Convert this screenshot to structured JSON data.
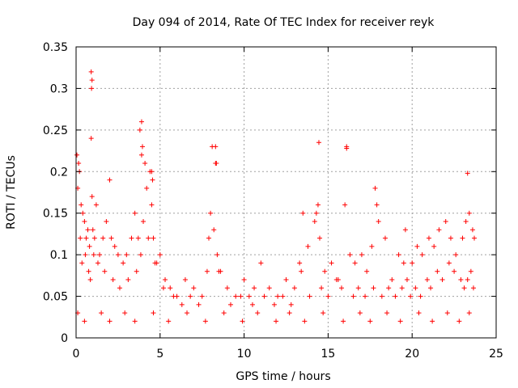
{
  "chart_data": {
    "type": "scatter",
    "title": "Day 094 of 2014, Rate Of TEC Index for receiver reyk",
    "xlabel": "GPS time / hours",
    "ylabel": "ROTI / TECUs",
    "xlim": [
      0,
      25
    ],
    "ylim": [
      0,
      0.35
    ],
    "xticks": [
      0,
      5,
      10,
      15,
      20,
      25
    ],
    "xtick_labels": [
      "0",
      "5",
      "10",
      "15",
      "20",
      "25"
    ],
    "yticks": [
      0,
      0.05,
      0.1,
      0.15,
      0.2,
      0.25,
      0.3,
      0.35
    ],
    "ytick_labels": [
      "0",
      "0.05",
      "0.1",
      "0.15",
      "0.2",
      "0.25",
      "0.3",
      "0.35"
    ],
    "grid": true,
    "marker": "plus",
    "color": "#ff0000",
    "series": [
      {
        "name": "ROTI",
        "x": [
          0.05,
          0.1,
          0.15,
          0.2,
          0.3,
          0.4,
          0.5,
          0.6,
          0.7,
          0.8,
          0.9,
          0.95,
          1.0,
          1.1,
          1.2,
          1.4,
          1.6,
          1.8,
          2.0,
          2.1,
          2.3,
          2.5,
          2.8,
          3.0,
          3.3,
          3.5,
          3.7,
          3.8,
          3.9,
          4.0,
          4.2,
          4.4,
          4.5,
          4.6,
          4.8,
          5.0,
          5.3,
          5.6,
          6.0,
          6.5,
          7.0,
          7.5,
          7.8,
          8.0,
          8.2,
          8.4,
          8.6,
          9.0,
          9.5,
          10.0,
          10.3,
          10.6,
          11.0,
          11.5,
          12.0,
          12.5,
          13.0,
          13.3,
          13.5,
          13.8,
          14.2,
          14.4,
          14.5,
          14.8,
          15.2,
          15.5,
          15.8,
          16.0,
          16.3,
          16.6,
          17.0,
          17.3,
          17.6,
          17.8,
          18.0,
          18.4,
          18.8,
          19.2,
          19.5,
          19.7,
          20.0,
          20.3,
          20.6,
          21.0,
          21.3,
          21.6,
          22.0,
          22.3,
          22.6,
          23.0,
          23.2,
          23.4,
          23.6,
          23.7,
          0.25,
          0.35,
          0.55,
          0.75,
          0.85,
          0.95,
          1.05,
          1.3,
          1.7,
          2.2,
          2.6,
          3.1,
          3.6,
          3.85,
          4.1,
          4.3,
          4.55,
          4.7,
          5.2,
          5.8,
          6.3,
          6.8,
          7.3,
          7.9,
          8.1,
          8.3,
          8.5,
          9.2,
          9.8,
          10.5,
          11.2,
          11.8,
          12.3,
          12.8,
          13.4,
          13.9,
          14.3,
          14.6,
          15.0,
          15.6,
          16.1,
          16.5,
          16.8,
          17.2,
          17.7,
          17.9,
          18.2,
          18.6,
          19.0,
          19.4,
          19.6,
          19.9,
          20.2,
          20.5,
          20.9,
          21.1,
          21.5,
          21.8,
          22.2,
          22.5,
          22.9,
          23.1,
          23.3,
          23.5,
          23.65,
          0.9,
          0.92,
          3.9,
          3.95,
          4.5,
          8.3,
          8.35,
          14.45,
          16.1,
          23.3,
          0.1,
          0.5,
          1.5,
          2.0,
          2.9,
          3.5,
          4.6,
          5.5,
          6.6,
          7.7,
          8.8,
          9.9,
          10.8,
          11.9,
          12.7,
          13.6,
          14.7,
          15.9,
          16.9,
          17.5,
          18.5,
          19.3,
          20.4,
          21.2,
          22.1,
          22.8,
          23.4
        ],
        "y": [
          0.22,
          0.18,
          0.21,
          0.2,
          0.16,
          0.15,
          0.14,
          0.12,
          0.13,
          0.11,
          0.24,
          0.17,
          0.13,
          0.12,
          0.16,
          0.1,
          0.12,
          0.14,
          0.19,
          0.12,
          0.11,
          0.1,
          0.09,
          0.1,
          0.12,
          0.15,
          0.12,
          0.25,
          0.22,
          0.14,
          0.18,
          0.2,
          0.16,
          0.12,
          0.09,
          0.1,
          0.07,
          0.06,
          0.05,
          0.07,
          0.06,
          0.05,
          0.08,
          0.15,
          0.13,
          0.1,
          0.08,
          0.06,
          0.05,
          0.07,
          0.05,
          0.06,
          0.09,
          0.06,
          0.05,
          0.07,
          0.06,
          0.09,
          0.15,
          0.11,
          0.14,
          0.16,
          0.12,
          0.08,
          0.09,
          0.07,
          0.06,
          0.16,
          0.1,
          0.09,
          0.1,
          0.08,
          0.11,
          0.18,
          0.14,
          0.12,
          0.07,
          0.1,
          0.09,
          0.07,
          0.09,
          0.11,
          0.1,
          0.12,
          0.11,
          0.13,
          0.14,
          0.12,
          0.1,
          0.12,
          0.14,
          0.15,
          0.13,
          0.12,
          0.12,
          0.09,
          0.1,
          0.08,
          0.07,
          0.31,
          0.1,
          0.09,
          0.08,
          0.07,
          0.06,
          0.07,
          0.08,
          0.1,
          0.21,
          0.12,
          0.19,
          0.09,
          0.06,
          0.05,
          0.04,
          0.05,
          0.04,
          0.12,
          0.23,
          0.21,
          0.08,
          0.04,
          0.05,
          0.04,
          0.05,
          0.04,
          0.05,
          0.04,
          0.08,
          0.05,
          0.15,
          0.06,
          0.05,
          0.07,
          0.23,
          0.05,
          0.06,
          0.05,
          0.06,
          0.16,
          0.05,
          0.06,
          0.05,
          0.06,
          0.13,
          0.05,
          0.06,
          0.05,
          0.07,
          0.06,
          0.08,
          0.07,
          0.09,
          0.08,
          0.07,
          0.06,
          0.07,
          0.08,
          0.06,
          0.32,
          0.3,
          0.26,
          0.23,
          0.2,
          0.23,
          0.21,
          0.235,
          0.228,
          0.198,
          0.03,
          0.02,
          0.03,
          0.02,
          0.03,
          0.02,
          0.03,
          0.02,
          0.03,
          0.02,
          0.03,
          0.02,
          0.03,
          0.02,
          0.03,
          0.02,
          0.03,
          0.02,
          0.03,
          0.02,
          0.03,
          0.02,
          0.03,
          0.02,
          0.03,
          0.02,
          0.03
        ]
      }
    ]
  }
}
